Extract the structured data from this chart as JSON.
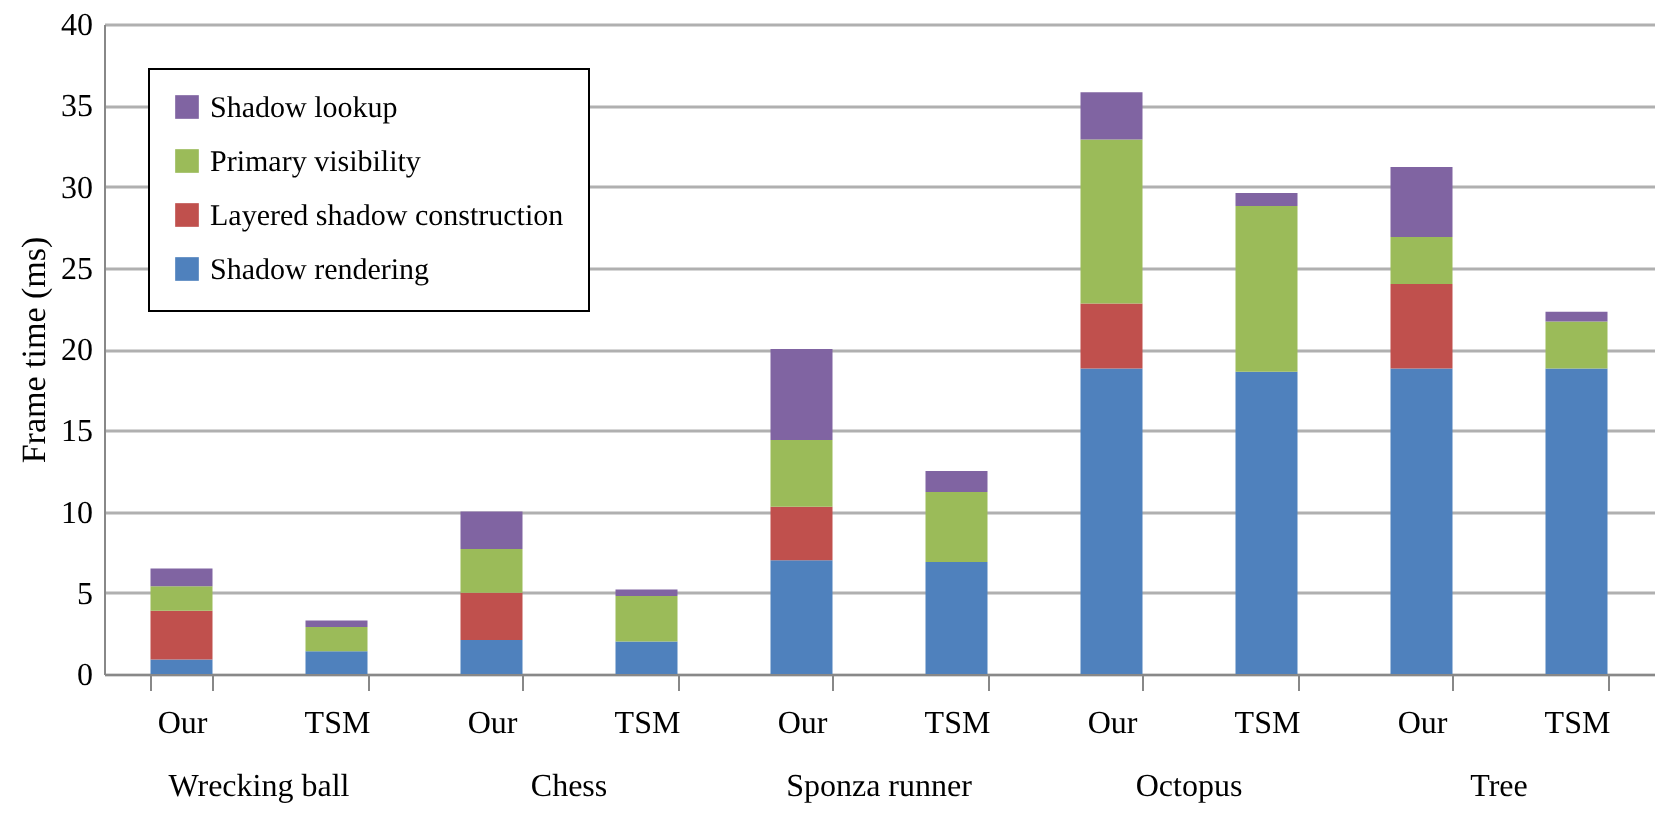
{
  "chart_data": {
    "type": "bar",
    "stacked": true,
    "ylabel": "Frame time (ms)",
    "categories": [
      "Our",
      "TSM",
      "Our",
      "TSM",
      "Our",
      "TSM",
      "Our",
      "TSM",
      "Our",
      "TSM"
    ],
    "annotations": [
      "Wrecking ball",
      "Chess",
      "Sponza runner",
      "Octopus",
      "Tree"
    ],
    "series": [
      {
        "name": "Shadow rendering",
        "color": "#4f81bd",
        "values": [
          0.9,
          1.4,
          2.1,
          2.0,
          7.0,
          6.9,
          18.8,
          18.6,
          18.8,
          18.8
        ]
      },
      {
        "name": "Layered shadow construction",
        "color": "#c0504d",
        "values": [
          3.0,
          0,
          2.9,
          0,
          3.3,
          0,
          4.0,
          0,
          5.2,
          0
        ]
      },
      {
        "name": "Primary visibility",
        "color": "#9bbb59",
        "values": [
          1.5,
          1.5,
          2.7,
          2.8,
          4.1,
          4.3,
          10.1,
          10.2,
          2.9,
          2.9
        ]
      },
      {
        "name": "Shadow lookup",
        "color": "#8064a2",
        "values": [
          1.1,
          0.4,
          2.3,
          0.4,
          5.6,
          1.3,
          2.9,
          0.8,
          4.3,
          0.6
        ]
      }
    ],
    "ylim": [
      0,
      40
    ],
    "yticks": [
      0,
      5,
      10,
      15,
      20,
      25,
      30,
      35,
      40
    ],
    "grid": "y",
    "legend": "top left"
  }
}
